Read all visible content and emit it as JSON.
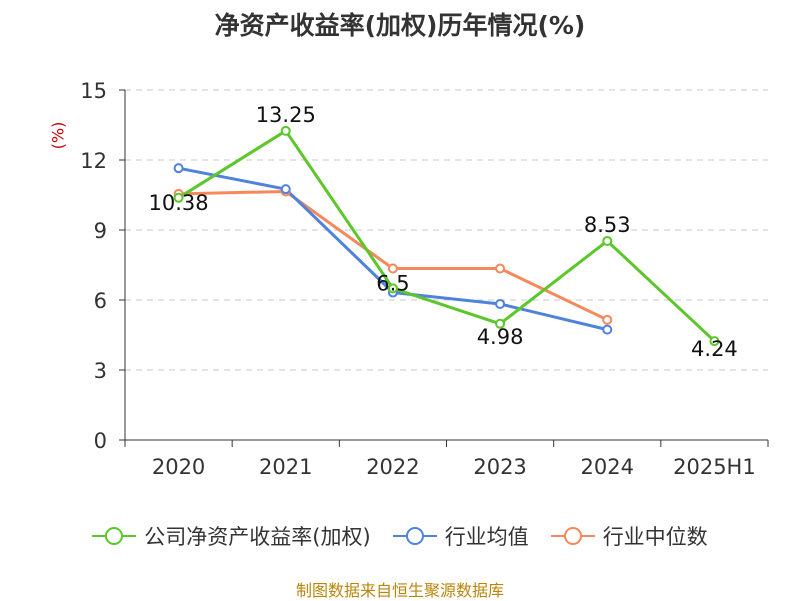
{
  "page": {
    "title": "净资产收益率(加权)历年情况(%)",
    "unit": "(%)",
    "source": "制图数据来自恒生聚源数据库"
  },
  "chart_data": {
    "type": "line",
    "title": "净资产收益率(加权)历年情况(%)",
    "ylabel": "(%)",
    "categories": [
      "2020",
      "2021",
      "2022",
      "2023",
      "2024",
      "2025H1"
    ],
    "ylim": [
      0,
      15
    ],
    "yticks": [
      0,
      3,
      6,
      9,
      12,
      15
    ],
    "grid": true,
    "legend_position": "bottom",
    "series": [
      {
        "name": "公司净资产收益率(加权)",
        "color": "#5bc72a",
        "values": [
          10.38,
          13.25,
          6.5,
          4.98,
          8.53,
          4.24
        ],
        "labels": [
          "10.38",
          "13.25",
          "6.5",
          "4.98",
          "8.53",
          "4.24"
        ]
      },
      {
        "name": "行业均值",
        "color": "#4f82dc",
        "values": [
          11.65,
          10.75,
          6.32,
          5.83,
          4.73,
          null
        ]
      },
      {
        "name": "行业中位数",
        "color": "#f5895b",
        "values": [
          10.55,
          10.65,
          7.35,
          7.35,
          5.15,
          null
        ]
      }
    ]
  }
}
